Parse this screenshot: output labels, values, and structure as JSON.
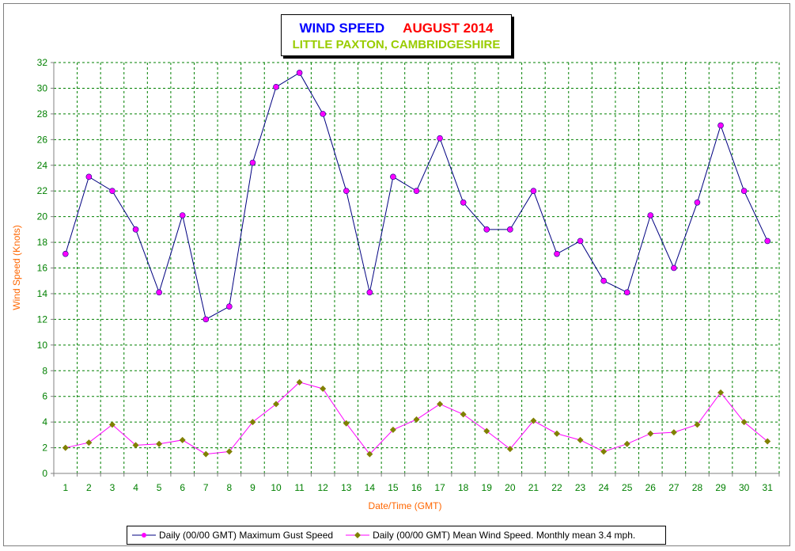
{
  "title": {
    "main": "WIND SPEED",
    "month": "AUGUST 2014",
    "location": "LITTLE PAXTON, CAMBRIDGESHIRE"
  },
  "colors": {
    "title_main": "#0000ff",
    "title_month": "#ff0000",
    "title_location": "#99cc00",
    "axis_label": "#ff6600",
    "tick_label": "#008000",
    "grid": "#008000",
    "series1_line": "#000080",
    "series1_marker": "#ff00ff",
    "series2_line": "#ff00ff",
    "series2_marker": "#808000"
  },
  "chart_data": {
    "type": "line",
    "title": "WIND SPEED AUGUST 2014",
    "subtitle": "LITTLE PAXTON, CAMBRIDGESHIRE",
    "xlabel": "Date/Time (GMT)",
    "ylabel": "Wind Speed (Knots)",
    "ylim": [
      0,
      32
    ],
    "yticks": [
      0,
      2,
      4,
      6,
      8,
      10,
      12,
      14,
      16,
      18,
      20,
      22,
      24,
      26,
      28,
      30,
      32
    ],
    "grid": true,
    "legend_position": "bottom",
    "categories": [
      "1",
      "2",
      "3",
      "4",
      "5",
      "6",
      "7",
      "8",
      "9",
      "10",
      "11",
      "12",
      "13",
      "14",
      "15",
      "16",
      "17",
      "18",
      "19",
      "20",
      "21",
      "22",
      "23",
      "24",
      "25",
      "26",
      "27",
      "28",
      "29",
      "30",
      "31"
    ],
    "series": [
      {
        "name": "Daily (00/00 GMT) Maximum Gust Speed",
        "values": [
          17.1,
          23.1,
          22.0,
          19.0,
          14.1,
          20.1,
          12.0,
          13.0,
          24.2,
          30.1,
          31.2,
          28.0,
          22.0,
          14.1,
          23.1,
          22.0,
          26.1,
          21.1,
          19.0,
          19.0,
          22.0,
          17.1,
          18.1,
          15.0,
          14.1,
          20.1,
          16.0,
          21.1,
          27.1,
          22.0,
          18.1
        ]
      },
      {
        "name": "Daily (00/00 GMT) Mean Wind Speed. Monthly mean 3.4 mph.",
        "values": [
          2.0,
          2.4,
          3.8,
          2.2,
          2.3,
          2.6,
          1.5,
          1.7,
          4.0,
          5.4,
          7.1,
          6.6,
          3.9,
          1.5,
          3.4,
          4.2,
          5.4,
          4.6,
          3.3,
          1.9,
          4.1,
          3.1,
          2.6,
          1.7,
          2.3,
          3.1,
          3.2,
          3.8,
          6.3,
          4.0,
          2.5
        ]
      }
    ]
  }
}
